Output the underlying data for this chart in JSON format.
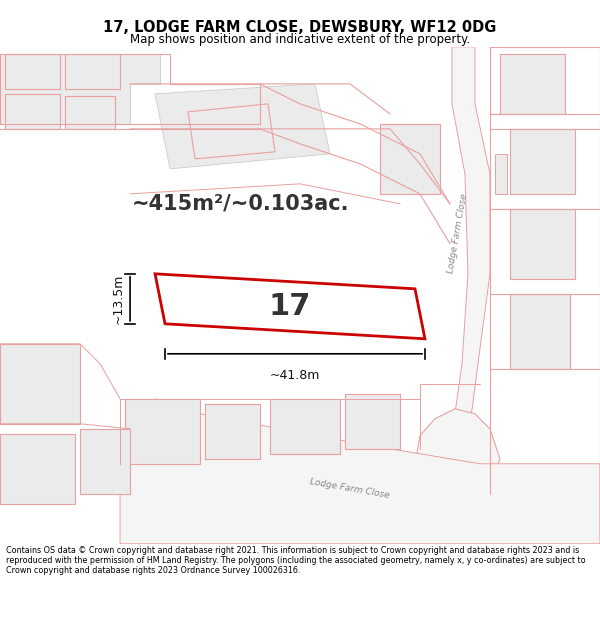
{
  "title": "17, LODGE FARM CLOSE, DEWSBURY, WF12 0DG",
  "subtitle": "Map shows position and indicative extent of the property.",
  "area_text": "~415m²/~0.103ac.",
  "dim_width": "~41.8m",
  "dim_height": "~13.5m",
  "plot_number": "17",
  "footer": "Contains OS data © Crown copyright and database right 2021. This information is subject to Crown copyright and database rights 2023 and is reproduced with the permission of HM Land Registry. The polygons (including the associated geometry, namely x, y co-ordinates) are subject to Crown copyright and database rights 2023 Ordnance Survey 100026316.",
  "road_label_1": "Lodge Farm Close",
  "road_label_2": "Lodge Farm Close",
  "background_color": "#ffffff",
  "map_bg_color": "#ffffff",
  "boundary_color": "#e8a0a0",
  "highlight_color": "#cc0000",
  "building_fill": "#ebebeb",
  "text_color": "#000000"
}
